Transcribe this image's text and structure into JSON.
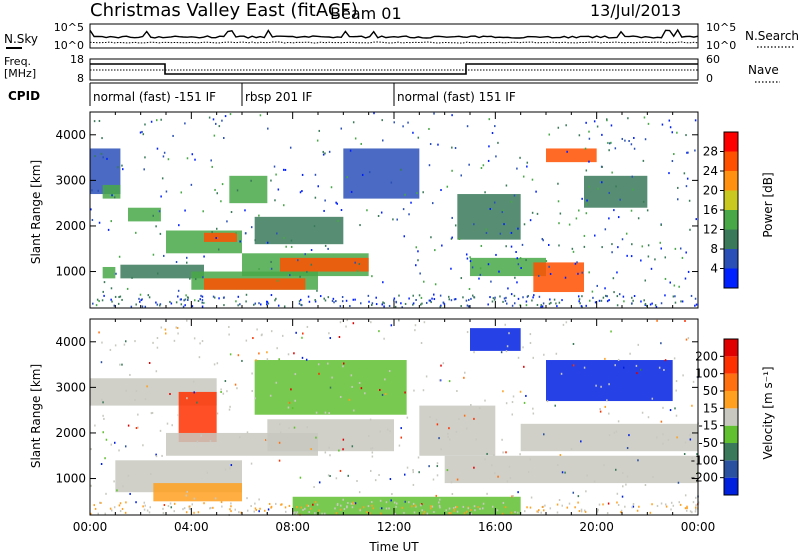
{
  "header": {
    "station": "Christmas Valley East (fitACF)",
    "beam": "Beam 01",
    "date": "13/Jul/2013"
  },
  "noise_panel": {
    "left_label": "N.Sky",
    "left_ticks": [
      "10^5",
      "10^0"
    ],
    "right_ticks": [
      "10^5",
      "10^0"
    ],
    "right_label": "N.Search"
  },
  "freq_panel": {
    "left_label_1": "Freq.",
    "left_label_2": "[MHz]",
    "left_ticks": [
      "18",
      "8"
    ],
    "right_ticks": [
      "60",
      "0"
    ],
    "right_label": "Nave"
  },
  "cpid": {
    "label": "CPID",
    "segments": [
      {
        "start_hour": 0,
        "end_hour": 6,
        "text": "normal (fast) -151 IF"
      },
      {
        "start_hour": 6,
        "end_hour": 12,
        "text": "rbsp 201 IF"
      },
      {
        "start_hour": 12,
        "end_hour": 24,
        "text": "normal (fast) 151 IF"
      }
    ]
  },
  "power_panel": {
    "ylabel": "Slant Range [km]",
    "yticks": [
      "4000",
      "3000",
      "2000",
      "1000"
    ],
    "colorbar_label": "Power [dB]",
    "colorbar_ticks": [
      "28",
      "24",
      "20",
      "16",
      "12",
      "8",
      "4"
    ],
    "colors": [
      "#0020ff",
      "#2a50b8",
      "#3a7a5a",
      "#48a848",
      "#c8c820",
      "#ff9010",
      "#ff5000",
      "#ff0000"
    ]
  },
  "velocity_panel": {
    "ylabel": "Slant Range [km]",
    "yticks": [
      "4000",
      "3000",
      "2000",
      "1000"
    ],
    "colorbar_label": "Velocity [m s⁻¹]",
    "colorbar_ticks": [
      "200",
      "100",
      "50",
      "15",
      "-15",
      "-50",
      "-100",
      "-200"
    ],
    "colors": [
      "#0020e0",
      "#2a50a0",
      "#3a7a5a",
      "#60c030",
      "#c8c8c0",
      "#ffa020",
      "#ff7010",
      "#ff3000",
      "#e00000"
    ]
  },
  "time_axis": {
    "xlabel": "Time UT",
    "ticks": [
      "00:00",
      "04:00",
      "08:00",
      "12:00",
      "16:00",
      "20:00",
      "00:00"
    ]
  },
  "chart_data": {
    "type": "heatmap",
    "title": "Christmas Valley East (fitACF) Beam 01 13/Jul/2013",
    "xlabel": "Time UT",
    "ylabel": "Slant Range [km]",
    "xlim": [
      0,
      24
    ],
    "ylim": [
      200,
      4500
    ],
    "panels": [
      {
        "name": "Power",
        "unit": "dB",
        "range": [
          0,
          30
        ],
        "regions": [
          {
            "t": [
              0.0,
              1.2
            ],
            "r": [
              2700,
              3700
            ],
            "value": 6
          },
          {
            "t": [
              0.5,
              1.0
            ],
            "r": [
              850,
              1100
            ],
            "value": 14
          },
          {
            "t": [
              0.5,
              1.2
            ],
            "r": [
              2600,
              2900
            ],
            "value": 12
          },
          {
            "t": [
              1.5,
              2.8
            ],
            "r": [
              2100,
              2400
            ],
            "value": 12
          },
          {
            "t": [
              1.2,
              4.5
            ],
            "r": [
              850,
              1150
            ],
            "value": 8
          },
          {
            "t": [
              3.0,
              6.0
            ],
            "r": [
              1400,
              1900
            ],
            "value": 14
          },
          {
            "t": [
              4.5,
              5.8
            ],
            "r": [
              1650,
              1850
            ],
            "value": 26
          },
          {
            "t": [
              4.0,
              9.0
            ],
            "r": [
              600,
              1000
            ],
            "value": 14
          },
          {
            "t": [
              4.5,
              8.5
            ],
            "r": [
              600,
              850
            ],
            "value": 26
          },
          {
            "t": [
              6.0,
              11.0
            ],
            "r": [
              900,
              1400
            ],
            "value": 14
          },
          {
            "t": [
              7.5,
              11.0
            ],
            "r": [
              1000,
              1300
            ],
            "value": 26
          },
          {
            "t": [
              5.5,
              7.0
            ],
            "r": [
              2500,
              3100
            ],
            "value": 14
          },
          {
            "t": [
              6.5,
              10.0
            ],
            "r": [
              1600,
              2200
            ],
            "value": 8
          },
          {
            "t": [
              10.0,
              13.0
            ],
            "r": [
              2600,
              3700
            ],
            "value": 6
          },
          {
            "t": [
              14.5,
              17.0
            ],
            "r": [
              1700,
              2700
            ],
            "value": 8
          },
          {
            "t": [
              15.0,
              18.0
            ],
            "r": [
              900,
              1300
            ],
            "value": 14
          },
          {
            "t": [
              17.5,
              19.5
            ],
            "r": [
              550,
              1200
            ],
            "value": 24
          },
          {
            "t": [
              18.0,
              20.0
            ],
            "r": [
              3400,
              3700
            ],
            "value": 26
          },
          {
            "t": [
              19.5,
              22.0
            ],
            "r": [
              2400,
              3100
            ],
            "value": 8
          }
        ]
      },
      {
        "name": "Velocity",
        "unit": "m s^-1",
        "range": [
          -200,
          200
        ],
        "regions": [
          {
            "t": [
              0.0,
              5.0
            ],
            "r": [
              2600,
              3200
            ],
            "value": 0
          },
          {
            "t": [
              1.0,
              6.0
            ],
            "r": [
              700,
              1400
            ],
            "value": 0
          },
          {
            "t": [
              2.5,
              6.0
            ],
            "r": [
              500,
              900
            ],
            "value": 30
          },
          {
            "t": [
              3.5,
              5.0
            ],
            "r": [
              1800,
              2900
            ],
            "value": 150
          },
          {
            "t": [
              3.0,
              9.0
            ],
            "r": [
              1500,
              2000
            ],
            "value": 0
          },
          {
            "t": [
              6.5,
              12.5
            ],
            "r": [
              2400,
              3600
            ],
            "value": -30
          },
          {
            "t": [
              7.0,
              12.0
            ],
            "r": [
              1600,
              2300
            ],
            "value": -20
          },
          {
            "t": [
              8.0,
              17.0
            ],
            "r": [
              200,
              600
            ],
            "value": -30
          },
          {
            "t": [
              13.0,
              16.0
            ],
            "r": [
              1500,
              2600
            ],
            "value": 20
          },
          {
            "t": [
              14.0,
              24.0
            ],
            "r": [
              900,
              1500
            ],
            "value": 0
          },
          {
            "t": [
              17.0,
              24.0
            ],
            "r": [
              1600,
              2200
            ],
            "value": -20
          },
          {
            "t": [
              18.0,
              23.0
            ],
            "r": [
              2700,
              3600
            ],
            "value": -180
          },
          {
            "t": [
              15.0,
              17.0
            ],
            "r": [
              3800,
              4300
            ],
            "value": -180
          }
        ]
      }
    ]
  }
}
